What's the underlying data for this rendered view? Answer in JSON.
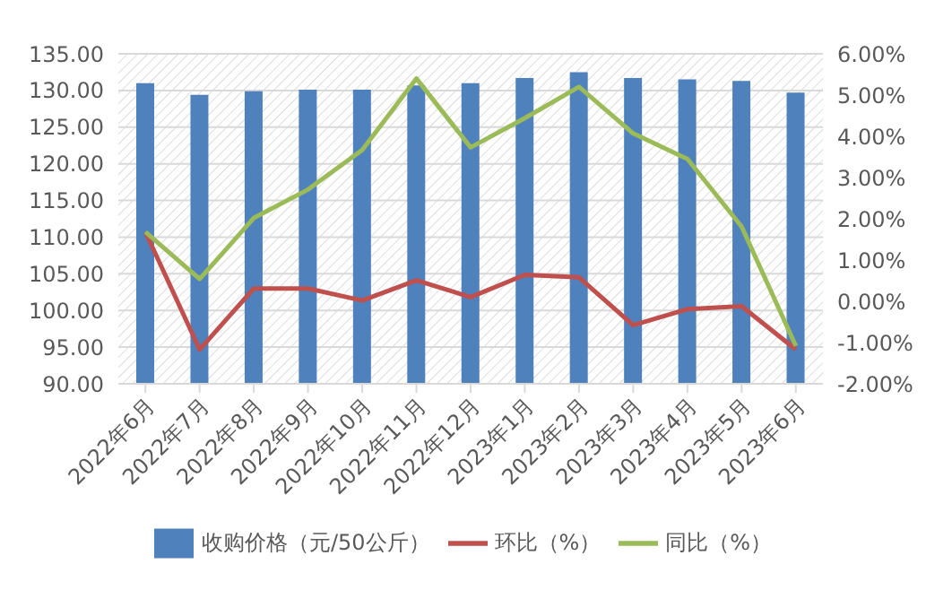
{
  "chart_data": {
    "type": "bar",
    "categories": [
      "2022年6月",
      "2022年7月",
      "2022年8月",
      "2022年9月",
      "2022年10月",
      "2022年11月",
      "2022年12月",
      "2023年1月",
      "2023年2月",
      "2023年3月",
      "2023年4月",
      "2023年5月",
      "2023年6月"
    ],
    "series": [
      {
        "name": "收购价格（元/50公斤）",
        "color": "#4f81bd",
        "values": [
          131.0,
          129.4,
          129.9,
          130.1,
          130.1,
          130.7,
          131.0,
          131.7,
          132.5,
          131.7,
          131.5,
          131.3,
          129.7
        ]
      },
      {
        "name": "环比（%）",
        "type": "line",
        "axis": "y2",
        "color": "#c0504d",
        "values": [
          1.68,
          -1.17,
          0.31,
          0.31,
          0.02,
          0.51,
          0.1,
          0.64,
          0.58,
          -0.58,
          -0.19,
          -0.12,
          -1.17
        ]
      },
      {
        "name": "同比（%）",
        "type": "line",
        "axis": "y2",
        "color": "#9bbb59",
        "values": [
          1.68,
          0.54,
          2.02,
          2.71,
          3.67,
          5.4,
          3.73,
          4.44,
          5.2,
          4.07,
          3.45,
          1.81,
          -1.08
        ]
      }
    ],
    "ylim": [
      90,
      135
    ],
    "yticks": [
      {
        "value": 90,
        "label": "90.00"
      },
      {
        "value": 95,
        "label": "95.00"
      },
      {
        "value": 100,
        "label": "100.00"
      },
      {
        "value": 105,
        "label": "105.00"
      },
      {
        "value": 110,
        "label": "110.00"
      },
      {
        "value": 115,
        "label": "115.00"
      },
      {
        "value": 120,
        "label": "120.00"
      },
      {
        "value": 125,
        "label": "125.00"
      },
      {
        "value": 130,
        "label": "130.00"
      },
      {
        "value": 135,
        "label": "135.00"
      }
    ],
    "y2lim": [
      -2,
      6
    ],
    "y2ticks": [
      {
        "value": -2,
        "label": "-2.00%"
      },
      {
        "value": -1,
        "label": "-1.00%"
      },
      {
        "value": 0,
        "label": "0.00%"
      },
      {
        "value": 1,
        "label": "1.00%"
      },
      {
        "value": 2,
        "label": "2.00%"
      },
      {
        "value": 3,
        "label": "3.00%"
      },
      {
        "value": 4,
        "label": "4.00%"
      },
      {
        "value": 5,
        "label": "5.00%"
      },
      {
        "value": 6,
        "label": "6.00%"
      }
    ],
    "grid": "y",
    "legend": "bottom",
    "marker": "none",
    "line_style": "solid"
  }
}
